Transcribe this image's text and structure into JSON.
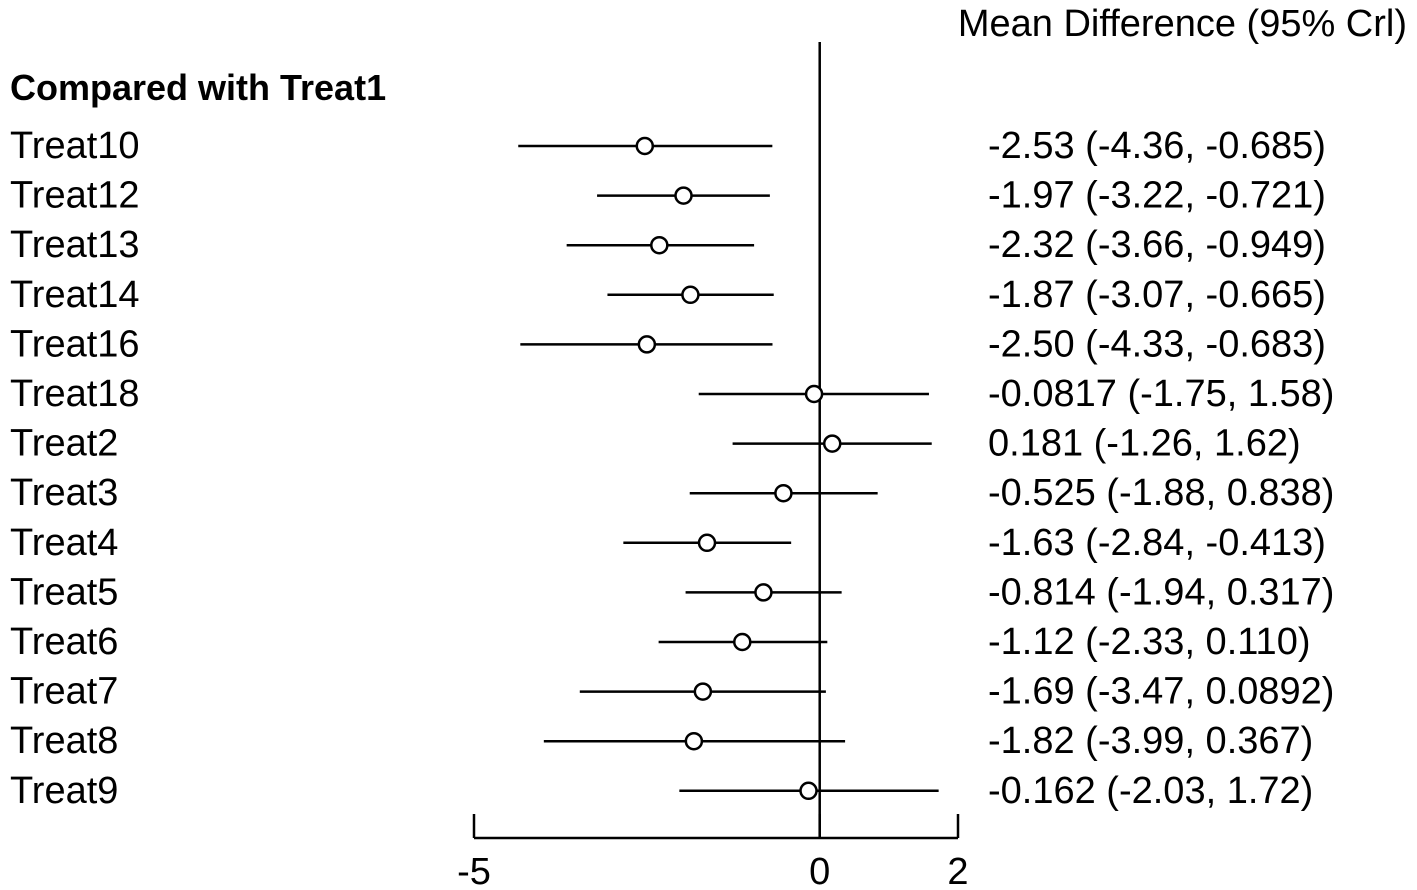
{
  "chart_data": {
    "type": "forest",
    "column_header": "Mean Difference (95% Crl)",
    "group_title": "Compared with Treat1",
    "reference_value": 0,
    "xlim": [
      -5,
      2
    ],
    "x_ticks": [
      -5,
      0,
      2
    ],
    "rows": [
      {
        "label": "Treat10",
        "estimate": -2.53,
        "lower": -4.36,
        "upper": -0.685,
        "text": "-2.53 (-4.36, -0.685)"
      },
      {
        "label": "Treat12",
        "estimate": -1.97,
        "lower": -3.22,
        "upper": -0.721,
        "text": "-1.97 (-3.22, -0.721)"
      },
      {
        "label": "Treat13",
        "estimate": -2.32,
        "lower": -3.66,
        "upper": -0.949,
        "text": "-2.32 (-3.66, -0.949)"
      },
      {
        "label": "Treat14",
        "estimate": -1.87,
        "lower": -3.07,
        "upper": -0.665,
        "text": "-1.87 (-3.07, -0.665)"
      },
      {
        "label": "Treat16",
        "estimate": -2.5,
        "lower": -4.33,
        "upper": -0.683,
        "text": "-2.50 (-4.33, -0.683)"
      },
      {
        "label": "Treat18",
        "estimate": -0.0817,
        "lower": -1.75,
        "upper": 1.58,
        "text": "-0.0817 (-1.75, 1.58)"
      },
      {
        "label": "Treat2",
        "estimate": 0.181,
        "lower": -1.26,
        "upper": 1.62,
        "text": "0.181 (-1.26, 1.62)"
      },
      {
        "label": "Treat3",
        "estimate": -0.525,
        "lower": -1.88,
        "upper": 0.838,
        "text": "-0.525 (-1.88, 0.838)"
      },
      {
        "label": "Treat4",
        "estimate": -1.63,
        "lower": -2.84,
        "upper": -0.413,
        "text": "-1.63 (-2.84, -0.413)"
      },
      {
        "label": "Treat5",
        "estimate": -0.814,
        "lower": -1.94,
        "upper": 0.317,
        "text": "-0.814 (-1.94, 0.317)"
      },
      {
        "label": "Treat6",
        "estimate": -1.12,
        "lower": -2.33,
        "upper": 0.11,
        "text": "-1.12 (-2.33, 0.110)"
      },
      {
        "label": "Treat7",
        "estimate": -1.69,
        "lower": -3.47,
        "upper": 0.0892,
        "text": "-1.69 (-3.47, 0.0892)"
      },
      {
        "label": "Treat8",
        "estimate": -1.82,
        "lower": -3.99,
        "upper": 0.367,
        "text": "-1.82 (-3.99, 0.367)"
      },
      {
        "label": "Treat9",
        "estimate": -0.162,
        "lower": -2.03,
        "upper": 1.72,
        "text": "-0.162 (-2.03, 1.72)"
      }
    ]
  }
}
